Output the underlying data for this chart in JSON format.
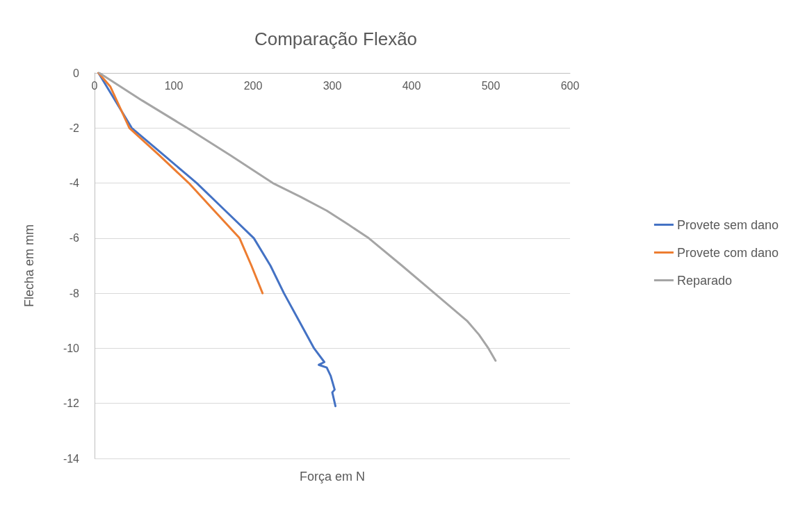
{
  "chart_data": {
    "type": "line",
    "title": "Comparação Flexão",
    "xlabel": "Força em N",
    "ylabel": "Flecha em mm",
    "xlim": [
      0,
      600
    ],
    "xticks": [
      0,
      100,
      200,
      300,
      400,
      500,
      600
    ],
    "ylim": [
      -14,
      0
    ],
    "yticks": [
      -14,
      -12,
      -10,
      -8,
      -6,
      -4,
      -2,
      0
    ],
    "grid": "y",
    "legend": "right",
    "marker": "none",
    "line_style": "solid",
    "series": [
      {
        "name": "Provete sem dano",
        "color": "#4472c4",
        "x": [
          5,
          47,
          88,
          129,
          165,
          201,
          222,
          239,
          258,
          277,
          290,
          283,
          293,
          298,
          303,
          300,
          304
        ],
        "values": [
          0,
          -2,
          -3,
          -4,
          -5,
          -6,
          -7,
          -8,
          -9,
          -10,
          -10.5,
          -10.6,
          -10.7,
          -11,
          -11.5,
          -11.6,
          -12.1
        ]
      },
      {
        "name": "Provete com dano",
        "color": "#ed7d31",
        "x": [
          5,
          20,
          44,
          82,
          119,
          151,
          183,
          198,
          212
        ],
        "values": [
          0,
          -0.5,
          -2,
          -3,
          -4,
          -5,
          -6,
          -7,
          -8
        ]
      },
      {
        "name": "Reparado",
        "color": "#a5a5a5",
        "x": [
          6,
          60,
          117,
          172,
          225,
          260,
          293,
          320,
          346,
          388,
          429,
          470,
          485,
          497,
          506
        ],
        "values": [
          0,
          -1,
          -2,
          -3,
          -4,
          -4.5,
          -5,
          -5.5,
          -6,
          -7,
          -8,
          -9,
          -9.5,
          -10,
          -10.45
        ]
      }
    ]
  }
}
